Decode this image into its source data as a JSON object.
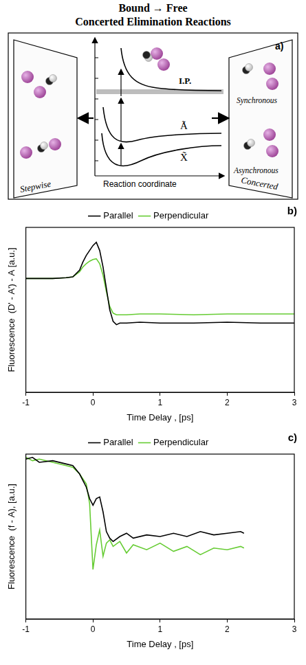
{
  "title": [
    "Bound → Free",
    "Concerted Elimination Reactions"
  ],
  "diagram": {
    "label": "a)",
    "ionization": "I.P.",
    "excited_state": "Ã",
    "ground_state": "X̃",
    "axis_label": "Reaction coordinate",
    "left_panel": "Stepwise",
    "right_panel": "Concerted",
    "right_top": "Synchronous",
    "right_bottom": "Asynchronous"
  },
  "chart_data": [
    {
      "type": "line",
      "panel_label": "b)",
      "x_label": "Time Delay , [ps]",
      "y_label": "Fluorescence  (D' - A') - A [a.u.]",
      "x": [
        -1,
        -0.8,
        -0.6,
        -0.4,
        -0.3,
        -0.2,
        -0.15,
        -0.1,
        -0.05,
        0,
        0.05,
        0.1,
        0.15,
        0.2,
        0.25,
        0.3,
        0.35,
        0.4,
        0.5,
        0.7,
        1,
        1.5,
        2,
        2.5,
        3
      ],
      "series": [
        {
          "name": "Parallel",
          "color": "#000000",
          "values": [
            6.9,
            6.9,
            6.9,
            6.95,
            7.0,
            7.4,
            7.9,
            8.3,
            8.6,
            8.9,
            9.1,
            8.6,
            7.6,
            6.3,
            5.0,
            4.3,
            4.1,
            4.2,
            4.2,
            4.25,
            4.2,
            4.2,
            4.25,
            4.2,
            4.2
          ]
        },
        {
          "name": "Perpendicular",
          "color": "#66cc33",
          "values": [
            6.9,
            6.9,
            6.9,
            6.95,
            7.0,
            7.3,
            7.6,
            7.8,
            7.95,
            8.05,
            8.1,
            7.8,
            7.1,
            6.1,
            5.2,
            4.8,
            4.7,
            4.7,
            4.7,
            4.75,
            4.75,
            4.7,
            4.75,
            4.75,
            4.75
          ]
        }
      ],
      "xlim": [
        -1,
        3
      ],
      "xticks": [
        -1,
        0,
        1,
        2,
        3
      ],
      "ylim": [
        0,
        10
      ],
      "grid": false,
      "legend": "top",
      "tick_labels": "x"
    },
    {
      "type": "line",
      "panel_label": "c)",
      "x_label": "Time Delay , [ps]",
      "y_label": "Fluorescence  (f - A), [a.u.]",
      "x": [
        -1,
        -0.9,
        -0.8,
        -0.6,
        -0.4,
        -0.3,
        -0.2,
        -0.1,
        -0.05,
        0,
        0.05,
        0.1,
        0.15,
        0.2,
        0.25,
        0.3,
        0.4,
        0.5,
        0.6,
        0.8,
        1,
        1.2,
        1.4,
        1.6,
        1.8,
        2,
        2.2,
        2.25
      ],
      "series": [
        {
          "name": "Parallel",
          "color": "#000000",
          "values": [
            9.7,
            9.8,
            9.5,
            9.6,
            9.4,
            9.3,
            8.8,
            8.0,
            7.3,
            6.9,
            7.3,
            7.4,
            6.5,
            5.3,
            4.9,
            4.7,
            5.0,
            5.2,
            4.9,
            5.1,
            5.0,
            5.2,
            5.0,
            5.3,
            5.1,
            5.2,
            5.3,
            5.2
          ]
        },
        {
          "name": "Perpendicular",
          "color": "#66cc33",
          "values": [
            9.8,
            9.6,
            9.7,
            9.5,
            9.3,
            9.2,
            8.8,
            8.2,
            7.0,
            3.0,
            4.5,
            5.4,
            3.8,
            4.6,
            4.8,
            4.4,
            4.7,
            4.0,
            4.5,
            4.2,
            4.6,
            4.1,
            4.4,
            3.9,
            4.3,
            4.2,
            4.4,
            4.3
          ]
        }
      ],
      "xlim": [
        -1,
        3
      ],
      "xticks": [
        -1,
        0,
        1,
        2,
        3
      ],
      "ylim": [
        0,
        10
      ],
      "grid": false,
      "legend": "top",
      "tick_labels": "x"
    }
  ]
}
